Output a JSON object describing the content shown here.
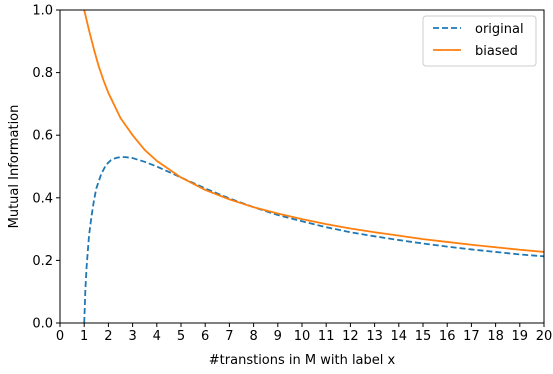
{
  "chart_data": {
    "type": "line",
    "title": "",
    "xlabel": "#transtions in M with label x",
    "ylabel": "Mutual Information",
    "xlim": [
      0,
      20
    ],
    "ylim": [
      0.0,
      1.0
    ],
    "xticks": [
      "0",
      "1",
      "2",
      "3",
      "4",
      "5",
      "6",
      "7",
      "8",
      "9",
      "10",
      "11",
      "12",
      "13",
      "14",
      "15",
      "16",
      "17",
      "18",
      "19",
      "20"
    ],
    "yticks": [
      "0.0",
      "0.2",
      "0.4",
      "0.6",
      "0.8",
      "1.0"
    ],
    "grid": false,
    "legend_position": "top-right",
    "series": [
      {
        "name": "original",
        "color": "#1f77b4",
        "style": "dashed",
        "x": [
          1.0,
          1.05,
          1.1,
          1.2,
          1.3,
          1.4,
          1.5,
          1.7,
          1.9,
          2.1,
          2.3,
          2.5,
          2.7,
          3.0,
          3.5,
          4,
          5,
          6,
          7,
          8,
          9,
          10,
          11,
          12,
          13,
          14,
          15,
          16,
          17,
          18,
          19,
          20
        ],
        "y": [
          0.0,
          0.11,
          0.18,
          0.28,
          0.34,
          0.39,
          0.43,
          0.475,
          0.505,
          0.52,
          0.527,
          0.53,
          0.53,
          0.527,
          0.515,
          0.5,
          0.465,
          0.43,
          0.398,
          0.37,
          0.345,
          0.325,
          0.306,
          0.29,
          0.277,
          0.265,
          0.254,
          0.244,
          0.235,
          0.227,
          0.219,
          0.213
        ]
      },
      {
        "name": "biased",
        "color": "#ff7f0e",
        "style": "solid",
        "x": [
          1,
          1.2,
          1.4,
          1.6,
          1.8,
          2,
          2.5,
          3,
          3.5,
          4,
          5,
          6,
          7,
          8,
          9,
          10,
          11,
          12,
          13,
          14,
          15,
          16,
          17,
          18,
          19,
          20
        ],
        "y": [
          1.0,
          0.935,
          0.875,
          0.82,
          0.775,
          0.735,
          0.655,
          0.6,
          0.553,
          0.518,
          0.465,
          0.425,
          0.395,
          0.37,
          0.35,
          0.332,
          0.316,
          0.302,
          0.29,
          0.279,
          0.268,
          0.259,
          0.25,
          0.242,
          0.234,
          0.227
        ]
      }
    ]
  }
}
